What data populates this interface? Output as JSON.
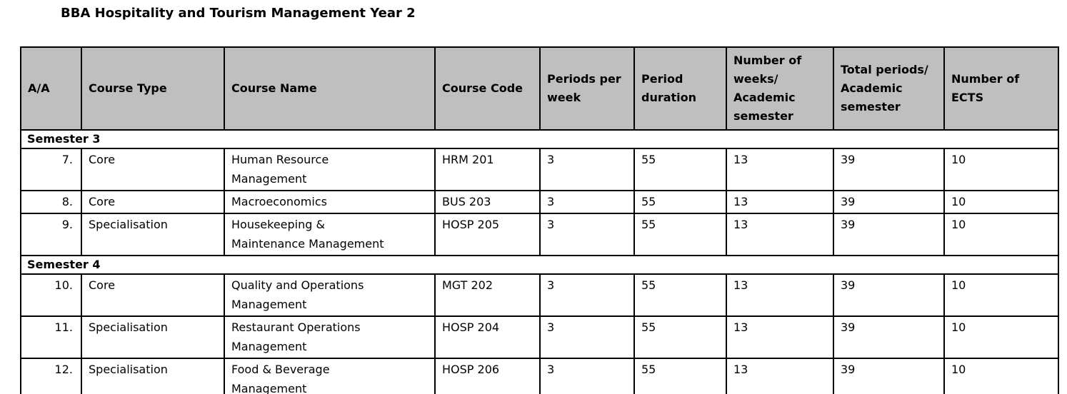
{
  "page": {
    "title": "BBA Hospitality and Tourism Management Year 2"
  },
  "colors": {
    "header_bg": "#bfbfbf",
    "border": "#000000",
    "text": "#000000",
    "page_bg": "#ffffff"
  },
  "table": {
    "columns": [
      "A/A",
      "Course Type",
      "Course Name",
      "Course Code",
      "Periods per\nweek",
      "Period\nduration",
      "Number of\nweeks/\nAcademic\nsemester",
      "Total periods/\nAcademic\nsemester",
      "Number of\nECTS"
    ],
    "sections": [
      {
        "label": "Semester 3",
        "rows": [
          {
            "cells": [
              "7.",
              "Core",
              "Human Resource\nManagement",
              "HRM 201",
              "3",
              "55",
              "13",
              "39",
              "10"
            ]
          },
          {
            "cells": [
              "8.",
              "Core",
              "Macroeconomics",
              "BUS 203",
              "3",
              "55",
              "13",
              "39",
              "10"
            ]
          },
          {
            "cells": [
              "9.",
              "Specialisation",
              "Housekeeping &\nMaintenance Management",
              "HOSP 205",
              "3",
              "55",
              "13",
              "39",
              "10"
            ]
          }
        ]
      },
      {
        "label": "Semester 4",
        "rows": [
          {
            "cells": [
              "10.",
              "Core",
              "Quality and Operations\nManagement",
              "MGT 202",
              "3",
              "55",
              "13",
              "39",
              "10"
            ]
          },
          {
            "cells": [
              "11.",
              "Specialisation",
              "Restaurant Operations\nManagement",
              "HOSP 204",
              "3",
              "55",
              "13",
              "39",
              "10"
            ]
          },
          {
            "cells": [
              "12.",
              "Specialisation",
              "Food & Beverage\nManagement",
              "HOSP 206",
              "3",
              "55",
              "13",
              "39",
              "10"
            ]
          }
        ]
      }
    ]
  }
}
